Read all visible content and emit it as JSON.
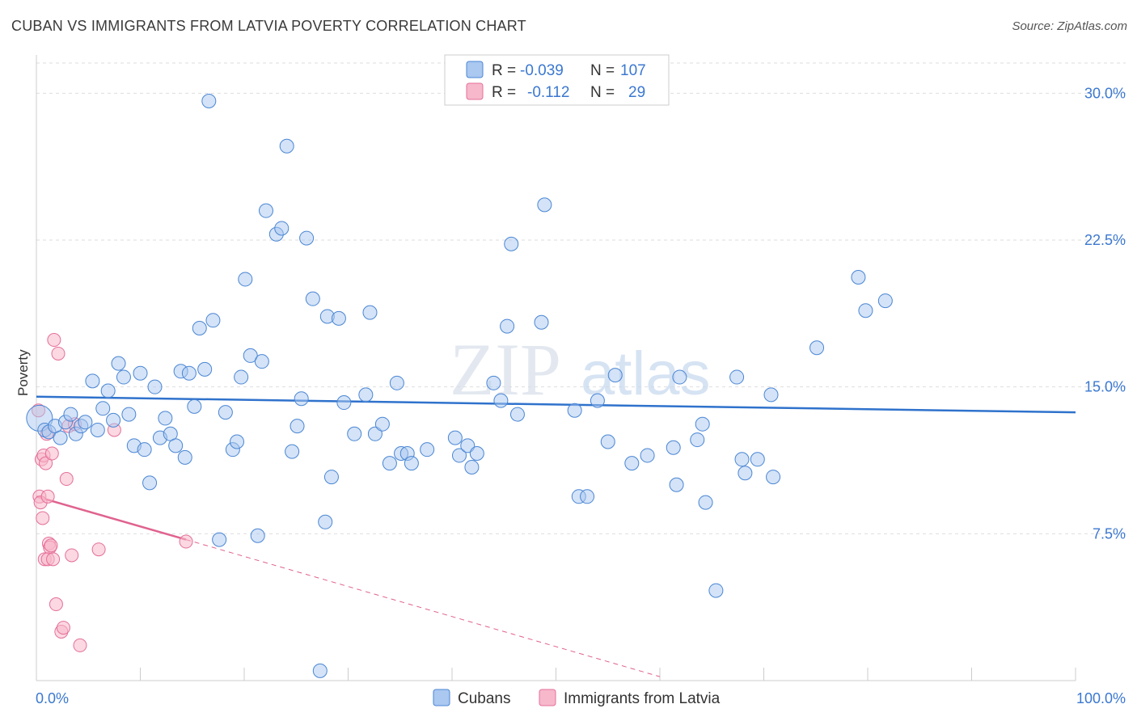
{
  "title": "CUBAN VS IMMIGRANTS FROM LATVIA POVERTY CORRELATION CHART",
  "source": "Source: ZipAtlas.com",
  "watermark": "ZIPatlas",
  "colors": {
    "blue_fill": "#aac8f0",
    "blue_stroke": "#4a86d4",
    "blue_line": "#2f72cc",
    "pink_fill": "#f7b8cb",
    "pink_stroke": "#e56f98",
    "pink_line": "#e0628f",
    "tick_text": "#3b78d0",
    "grid": "#dddddd"
  },
  "chart_data": {
    "type": "scatter",
    "title": "CUBAN VS IMMIGRANTS FROM LATVIA POVERTY CORRELATION CHART",
    "ylabel": "Poverty",
    "xlabel": "",
    "xlim": [
      0,
      100
    ],
    "ylim": [
      0,
      31.5
    ],
    "x_tick_labels": [
      "0.0%",
      "100.0%"
    ],
    "y_ticks": [
      7.5,
      15.0,
      22.5,
      30.0
    ],
    "y_tick_labels": [
      "7.5%",
      "15.0%",
      "22.5%",
      "30.0%"
    ],
    "grid": "horizontal dashed",
    "legend_top": [
      {
        "r_label": "R =",
        "r_value": "-0.039",
        "n_label": "N =",
        "n_value": "107"
      },
      {
        "r_label": "R =",
        "r_value": "-0.112",
        "n_label": "N =",
        "n_value": "29"
      }
    ],
    "series": [
      {
        "name": "Cubans",
        "color": "blue",
        "trend": {
          "x": [
            0,
            100
          ],
          "y": [
            14.5,
            13.7
          ]
        },
        "points": [
          [
            0.3,
            13.4
          ],
          [
            0.8,
            12.8
          ],
          [
            1.2,
            12.7
          ],
          [
            1.8,
            13.0
          ],
          [
            2.3,
            12.4
          ],
          [
            2.8,
            13.2
          ],
          [
            3.3,
            13.6
          ],
          [
            3.8,
            12.6
          ],
          [
            4.3,
            13.0
          ],
          [
            4.7,
            13.2
          ],
          [
            5.4,
            15.3
          ],
          [
            5.9,
            12.8
          ],
          [
            6.4,
            13.9
          ],
          [
            6.9,
            14.8
          ],
          [
            7.4,
            13.3
          ],
          [
            7.9,
            16.2
          ],
          [
            8.4,
            15.5
          ],
          [
            8.9,
            13.6
          ],
          [
            9.4,
            12.0
          ],
          [
            10.0,
            15.7
          ],
          [
            10.4,
            11.8
          ],
          [
            10.9,
            10.1
          ],
          [
            11.4,
            15.0
          ],
          [
            11.9,
            12.4
          ],
          [
            12.4,
            13.4
          ],
          [
            12.9,
            12.6
          ],
          [
            13.4,
            12.0
          ],
          [
            13.9,
            15.8
          ],
          [
            14.3,
            11.4
          ],
          [
            14.7,
            15.7
          ],
          [
            15.2,
            14.0
          ],
          [
            15.7,
            18.0
          ],
          [
            16.2,
            15.9
          ],
          [
            16.6,
            29.6
          ],
          [
            17.0,
            18.4
          ],
          [
            17.6,
            7.2
          ],
          [
            18.2,
            13.7
          ],
          [
            18.9,
            11.8
          ],
          [
            19.3,
            12.2
          ],
          [
            19.7,
            15.5
          ],
          [
            20.1,
            20.5
          ],
          [
            20.6,
            16.6
          ],
          [
            21.3,
            7.4
          ],
          [
            21.7,
            16.3
          ],
          [
            22.1,
            24.0
          ],
          [
            23.1,
            22.8
          ],
          [
            23.6,
            23.1
          ],
          [
            24.1,
            27.3
          ],
          [
            24.6,
            11.7
          ],
          [
            25.1,
            13.0
          ],
          [
            25.5,
            14.4
          ],
          [
            26.0,
            22.6
          ],
          [
            26.6,
            19.5
          ],
          [
            27.3,
            0.5
          ],
          [
            27.8,
            8.1
          ],
          [
            28.0,
            18.6
          ],
          [
            28.4,
            10.4
          ],
          [
            29.1,
            18.5
          ],
          [
            29.6,
            14.2
          ],
          [
            30.6,
            12.6
          ],
          [
            31.7,
            14.6
          ],
          [
            32.1,
            18.8
          ],
          [
            32.6,
            12.6
          ],
          [
            33.3,
            13.1
          ],
          [
            34.0,
            11.1
          ],
          [
            34.7,
            15.2
          ],
          [
            35.1,
            11.6
          ],
          [
            35.7,
            11.6
          ],
          [
            36.1,
            11.1
          ],
          [
            37.6,
            11.8
          ],
          [
            40.3,
            12.4
          ],
          [
            40.7,
            11.5
          ],
          [
            41.5,
            12.0
          ],
          [
            41.9,
            10.9
          ],
          [
            42.4,
            11.6
          ],
          [
            44.0,
            15.2
          ],
          [
            44.7,
            14.3
          ],
          [
            45.3,
            18.1
          ],
          [
            45.7,
            22.3
          ],
          [
            46.3,
            13.6
          ],
          [
            48.6,
            18.3
          ],
          [
            48.9,
            24.3
          ],
          [
            51.8,
            13.8
          ],
          [
            52.2,
            9.4
          ],
          [
            53.0,
            9.4
          ],
          [
            54.0,
            14.3
          ],
          [
            55.0,
            12.2
          ],
          [
            55.7,
            15.6
          ],
          [
            57.3,
            11.1
          ],
          [
            58.8,
            11.5
          ],
          [
            61.3,
            11.9
          ],
          [
            61.6,
            10.0
          ],
          [
            61.9,
            15.5
          ],
          [
            63.6,
            12.3
          ],
          [
            64.1,
            13.1
          ],
          [
            64.4,
            9.1
          ],
          [
            65.4,
            4.6
          ],
          [
            67.4,
            15.5
          ],
          [
            67.9,
            11.3
          ],
          [
            68.2,
            10.6
          ],
          [
            69.4,
            11.3
          ],
          [
            70.7,
            14.6
          ],
          [
            70.9,
            10.4
          ],
          [
            75.1,
            17.0
          ],
          [
            79.1,
            20.6
          ],
          [
            79.8,
            18.9
          ],
          [
            81.7,
            19.4
          ]
        ]
      },
      {
        "name": "Immigrants from Latvia",
        "color": "pink",
        "trend": {
          "x": [
            0,
            14.4
          ],
          "y": [
            9.4,
            7.2
          ]
        },
        "trend_dashed": {
          "x": [
            14.4,
            60
          ],
          "y": [
            7.2,
            0.2
          ]
        },
        "points": [
          [
            0.2,
            13.8
          ],
          [
            0.3,
            9.4
          ],
          [
            0.4,
            9.1
          ],
          [
            0.5,
            11.3
          ],
          [
            0.6,
            8.3
          ],
          [
            0.7,
            11.5
          ],
          [
            0.8,
            6.2
          ],
          [
            0.9,
            11.1
          ],
          [
            1.0,
            12.6
          ],
          [
            1.1,
            9.4
          ],
          [
            1.2,
            7.0
          ],
          [
            1.3,
            6.8
          ],
          [
            1.5,
            11.6
          ],
          [
            1.7,
            17.4
          ],
          [
            1.9,
            3.9
          ],
          [
            2.1,
            16.7
          ],
          [
            2.4,
            2.5
          ],
          [
            2.6,
            2.7
          ],
          [
            2.9,
            10.3
          ],
          [
            3.1,
            13.0
          ],
          [
            3.4,
            6.4
          ],
          [
            3.7,
            13.1
          ],
          [
            4.2,
            1.8
          ],
          [
            6.0,
            6.7
          ],
          [
            7.5,
            12.8
          ],
          [
            1.1,
            6.2
          ],
          [
            1.4,
            6.9
          ],
          [
            1.6,
            6.2
          ],
          [
            14.4,
            7.1
          ]
        ]
      }
    ]
  }
}
